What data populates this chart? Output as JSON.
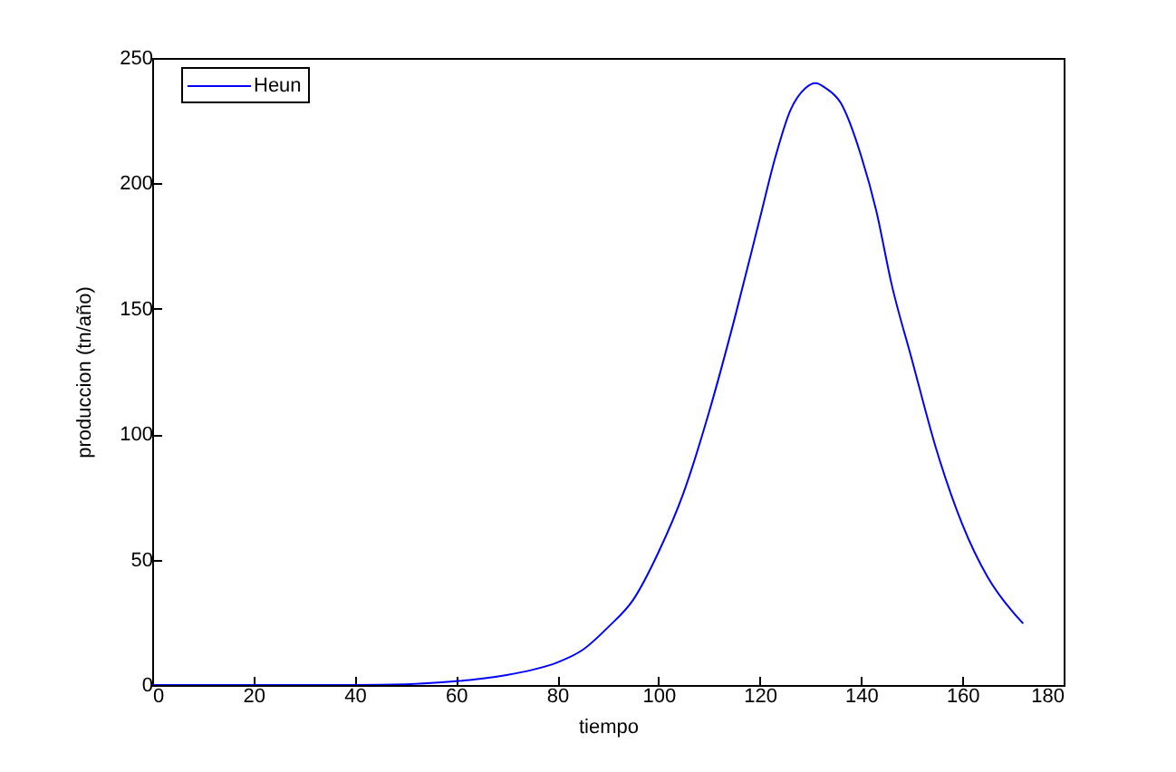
{
  "chart_data": {
    "type": "line",
    "xlabel": "tiempo",
    "ylabel": "produccion (tn/año)",
    "xlim": [
      0,
      180
    ],
    "ylim": [
      0,
      250
    ],
    "xticks": [
      0,
      20,
      40,
      60,
      80,
      100,
      120,
      140,
      160,
      180
    ],
    "yticks": [
      0,
      50,
      100,
      150,
      200,
      250
    ],
    "grid": false,
    "legend": "top left",
    "marker": "none",
    "line_style": "solid",
    "x": [
      0,
      10,
      20,
      30,
      40,
      50,
      55,
      60,
      65,
      70,
      75,
      80,
      85,
      90,
      95,
      100,
      105,
      110,
      115,
      120,
      123,
      126,
      129,
      131,
      133,
      136,
      140,
      143,
      146,
      150,
      155,
      160,
      165,
      170,
      172
    ],
    "series": [
      {
        "name": "Heun",
        "color": "#0000ff",
        "values": [
          0,
          0,
          0,
          0,
          0,
          0.3,
          0.8,
          1.5,
          2.5,
          4,
          6,
          9,
          14,
          23,
          34,
          53,
          77,
          109,
          146,
          186,
          210,
          229,
          238,
          240,
          238,
          232,
          211,
          189,
          160,
          130,
          93,
          64,
          43,
          29,
          24.5
        ]
      }
    ]
  }
}
